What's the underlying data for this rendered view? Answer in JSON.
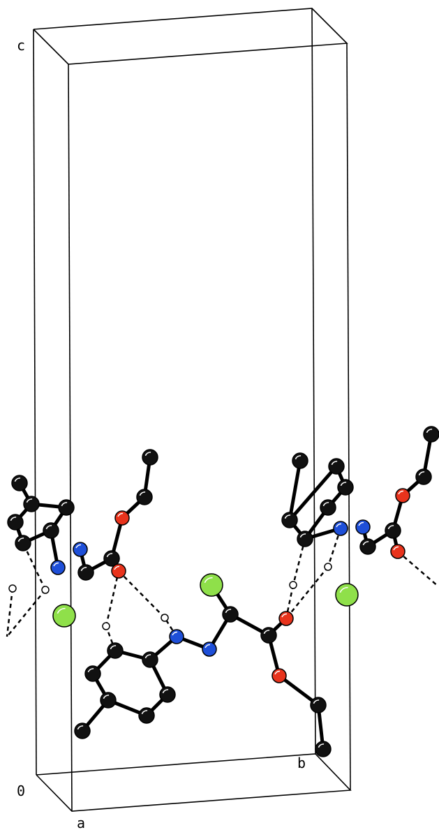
{
  "axis_labels": {
    "c": "c",
    "b": "b",
    "origin": "0",
    "a": "a"
  }
}
